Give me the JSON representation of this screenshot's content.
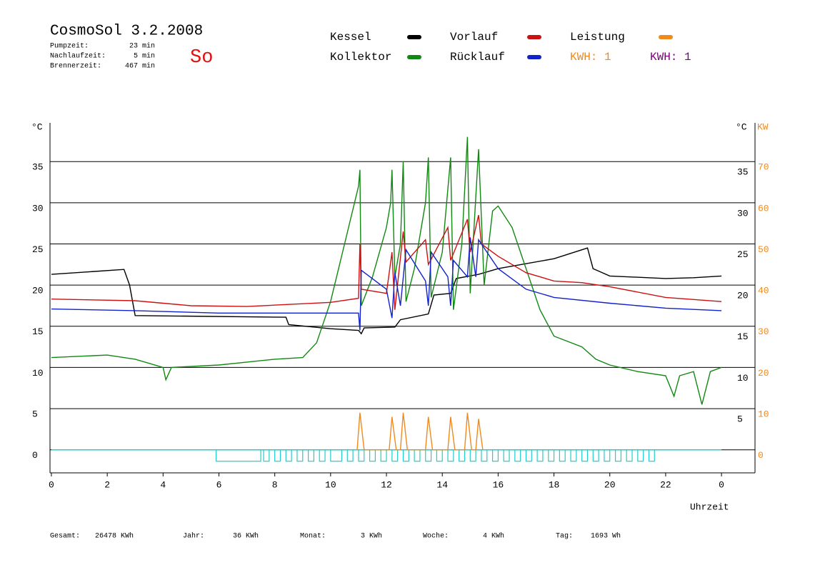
{
  "chart_data": {
    "type": "line",
    "title": "CosmoSol 3.2.2008",
    "day": "So",
    "info": [
      {
        "label": "Pumpzeit:",
        "value": "23 min"
      },
      {
        "label": "Nachlaufzeit:",
        "value": "5 min"
      },
      {
        "label": "Brennerzeit:",
        "value": "467 min"
      }
    ],
    "footer": [
      {
        "label": "Gesamt:",
        "value": "26478 KWh"
      },
      {
        "label": "Jahr:",
        "value": "36 KWh"
      },
      {
        "label": "Monat:",
        "value": "3 KWh"
      },
      {
        "label": "Woche:",
        "value": "4 KWh"
      },
      {
        "label": "Tag:",
        "value": "1693 Wh"
      }
    ],
    "kwh_labels": [
      {
        "text": "KWH: 1",
        "color": "#f08a1c"
      },
      {
        "text": "KWH: 1",
        "color": "#800080"
      }
    ],
    "ylabel": "°C",
    "ylabel_right": "°C",
    "y2label": "KW",
    "xlabel": "Uhrzeit",
    "xlim": [
      -0.05,
      25.2
    ],
    "xticks": [
      0,
      2,
      4,
      6,
      8,
      10,
      12,
      14,
      16,
      18,
      20,
      22,
      {
        "value": 24,
        "label": "0"
      }
    ],
    "ylim": [
      -2.8,
      39.7
    ],
    "yticks": [
      0,
      5,
      10,
      15,
      20,
      25,
      30,
      35
    ],
    "yticks_right": [
      5,
      10,
      15,
      20,
      25,
      30,
      35
    ],
    "y2lim": [
      -5.6,
      79.4
    ],
    "y2ticks": [
      0,
      10,
      20,
      30,
      40,
      50,
      60,
      70
    ],
    "grid": true,
    "series": [
      {
        "name": "Kessel",
        "color": "#000000",
        "x": [
          0,
          2.6,
          2.8,
          3,
          8.4,
          8.5,
          10,
          11,
          11.1,
          11.2,
          12.3,
          12.5,
          13.5,
          13.7,
          14.3,
          14.5,
          15.3,
          16,
          18,
          19.2,
          19.4,
          20,
          22,
          23,
          24
        ],
        "values": [
          21.3,
          21.9,
          20,
          16.3,
          16.1,
          15.2,
          14.7,
          14.5,
          14.1,
          14.8,
          14.9,
          15.8,
          16.5,
          18.8,
          19,
          20.8,
          21.3,
          22,
          23.2,
          24.5,
          22,
          21.1,
          20.8,
          20.9,
          21.1
        ]
      },
      {
        "name": "Kollektor",
        "color": "#118811",
        "x": [
          0,
          2,
          3,
          4,
          4.1,
          4.3,
          6,
          8,
          9,
          9.5,
          10,
          10.5,
          11,
          11.05,
          11.1,
          11.5,
          12,
          12.15,
          12.2,
          12.3,
          12.5,
          12.6,
          12.7,
          13,
          13.4,
          13.5,
          13.6,
          14,
          14.3,
          14.4,
          14.7,
          14.9,
          15,
          15.3,
          15.5,
          15.8,
          16,
          16.5,
          17,
          17.5,
          18,
          19,
          19.5,
          20,
          21,
          22,
          22.3,
          22.5,
          23,
          23.3,
          23.6,
          24
        ],
        "values": [
          11.2,
          11.5,
          11,
          10,
          8.5,
          10,
          10.3,
          11,
          11.2,
          13,
          18,
          25,
          32,
          34,
          17.5,
          21,
          27,
          30,
          34,
          21,
          25,
          35,
          18,
          22,
          30,
          35.5,
          18.5,
          24,
          35.5,
          17,
          25,
          38,
          19,
          36.5,
          20,
          29,
          29.6,
          27,
          22,
          17,
          13.8,
          12.5,
          11,
          10.3,
          9.5,
          9,
          6.5,
          9,
          9.5,
          5.5,
          9.5,
          10
        ]
      },
      {
        "name": "Vorlauf",
        "color": "#cc1111",
        "x": [
          0,
          3,
          5,
          7,
          10,
          11,
          11.05,
          11.1,
          12,
          12.2,
          12.3,
          12.6,
          12.7,
          13.4,
          13.5,
          14.2,
          14.3,
          14.9,
          15,
          15.3,
          15.4,
          16,
          17,
          18,
          19,
          20,
          22,
          24
        ],
        "values": [
          18.3,
          18.1,
          17.5,
          17.4,
          17.9,
          18.4,
          25,
          19.5,
          19,
          24,
          17,
          26.5,
          22.8,
          25.5,
          22.5,
          27,
          23,
          28,
          24,
          28.5,
          25,
          23.5,
          21.5,
          20.5,
          20.3,
          19.8,
          18.5,
          18
        ]
      },
      {
        "name": "Rücklauf",
        "color": "#1122cc",
        "x": [
          0,
          3,
          6,
          11,
          11.05,
          11.1,
          12,
          12.2,
          12.3,
          12.5,
          12.7,
          13.4,
          13.5,
          13.6,
          14.2,
          14.3,
          14.4,
          14.9,
          15,
          15.2,
          15.3,
          16,
          17,
          18,
          20,
          22,
          24
        ],
        "values": [
          17.1,
          16.9,
          16.6,
          16.6,
          14.5,
          21.8,
          19.5,
          16,
          21.5,
          17.5,
          24.3,
          20.5,
          17.5,
          24,
          21,
          17.5,
          23,
          21,
          25.8,
          21,
          25.5,
          22,
          19.5,
          18.5,
          17.8,
          17.2,
          16.9
        ]
      },
      {
        "name": "Leistung",
        "color": "#f08a1c",
        "axis": "y2",
        "x": [
          10.95,
          11.05,
          11.2,
          12.1,
          12.2,
          12.35,
          12.5,
          12.6,
          12.75,
          13.4,
          13.5,
          13.65,
          14.2,
          14.3,
          14.45,
          14.8,
          14.9,
          15.05,
          15.2,
          15.3,
          15.45
        ],
        "values": [
          0,
          9,
          0,
          0,
          8,
          0,
          0,
          9,
          0,
          0,
          8,
          0,
          0,
          8,
          0,
          0,
          9,
          0,
          0,
          7.5,
          0
        ]
      }
    ],
    "pump_on": [
      [
        5.9,
        7.5
      ],
      [
        7.6,
        7.8
      ],
      [
        8.0,
        8.2
      ],
      [
        8.4,
        8.6
      ],
      [
        8.8,
        9.0
      ],
      [
        9.2,
        9.4
      ],
      [
        9.6,
        9.8
      ],
      [
        10.0,
        10.4
      ],
      [
        10.6,
        10.8
      ],
      [
        11.0,
        11.2
      ],
      [
        11.4,
        11.6
      ],
      [
        11.8,
        12.0
      ],
      [
        12.2,
        12.4
      ],
      [
        12.6,
        12.8
      ],
      [
        13.0,
        13.2
      ],
      [
        13.4,
        13.6
      ],
      [
        13.8,
        14.0
      ],
      [
        14.2,
        14.4
      ],
      [
        14.6,
        14.8
      ],
      [
        15.0,
        15.2
      ],
      [
        15.4,
        15.6
      ],
      [
        15.8,
        16.0
      ],
      [
        16.2,
        16.4
      ],
      [
        16.6,
        16.8
      ],
      [
        17.0,
        17.2
      ],
      [
        17.4,
        17.6
      ],
      [
        17.8,
        18.0
      ],
      [
        18.2,
        18.4
      ],
      [
        18.6,
        18.8
      ],
      [
        19.0,
        19.2
      ],
      [
        19.4,
        19.6
      ],
      [
        19.8,
        20.0
      ],
      [
        20.2,
        20.4
      ],
      [
        20.6,
        20.8
      ],
      [
        21.0,
        21.2
      ],
      [
        21.4,
        21.6
      ]
    ]
  }
}
